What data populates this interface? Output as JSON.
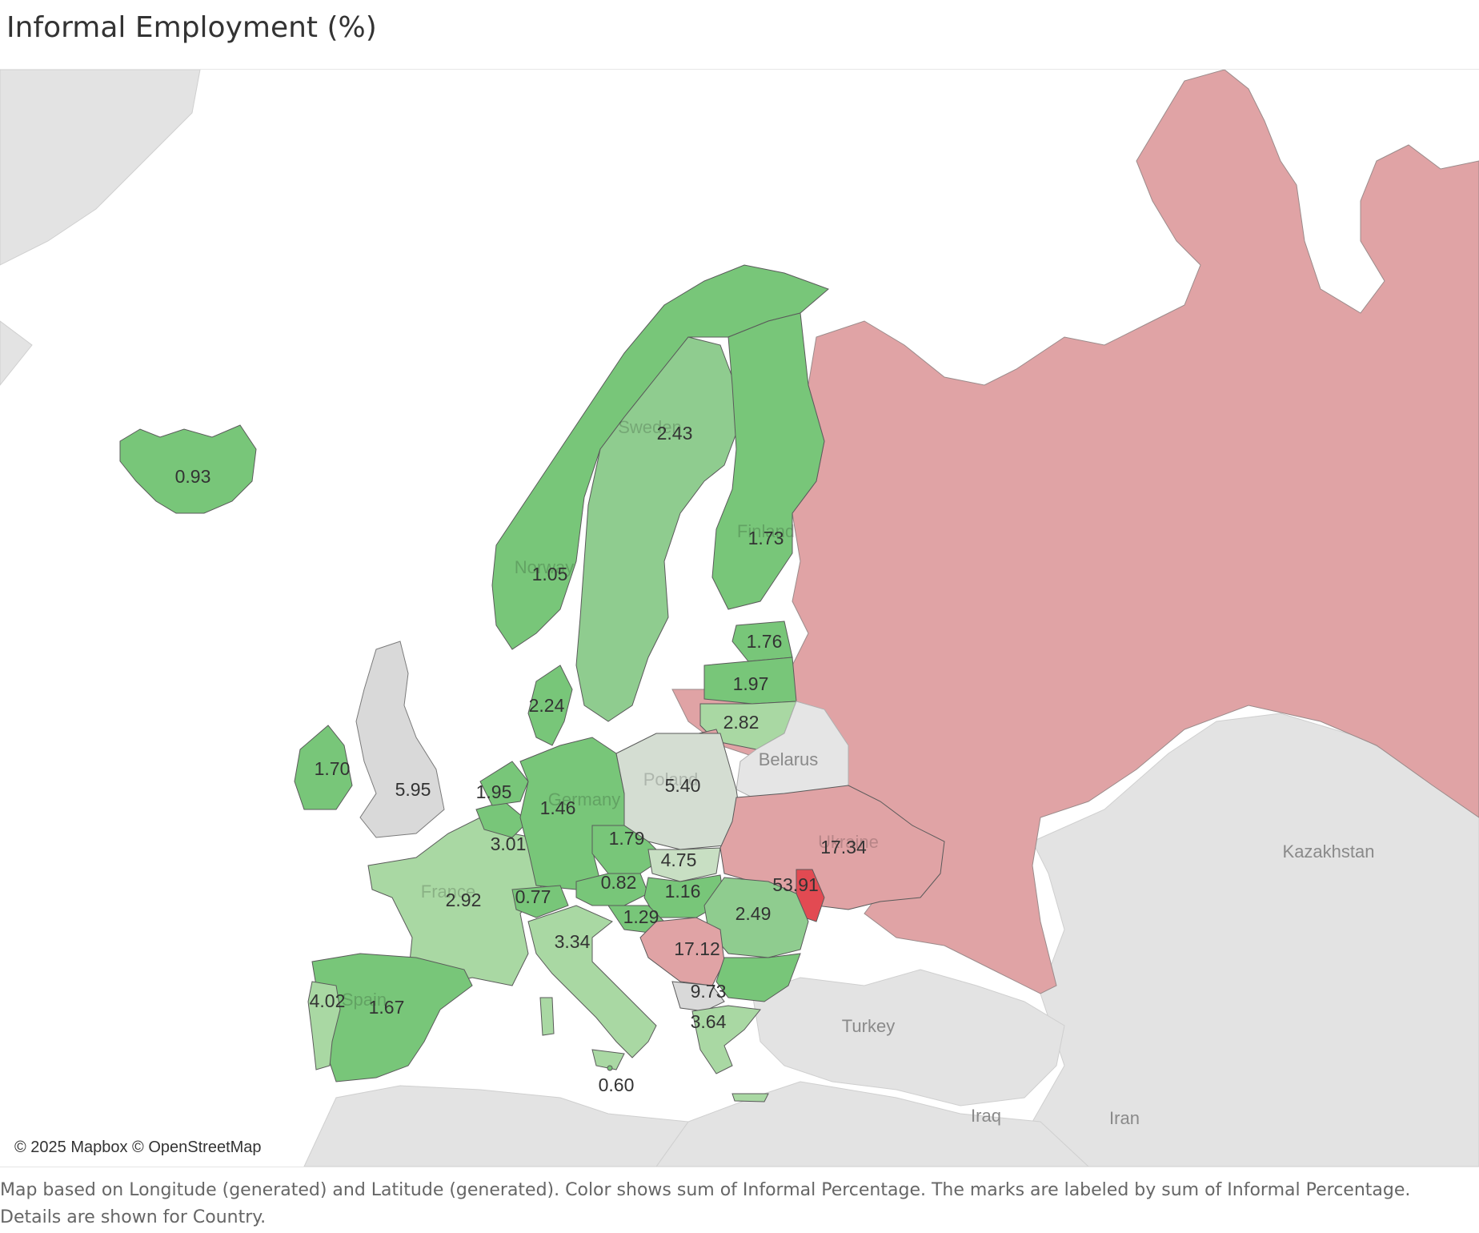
{
  "title": "Informal Employment (%)",
  "attribution": "© 2025 Mapbox © OpenStreetMap",
  "caption": "Map based on Longitude (generated) and Latitude (generated).  Color shows sum of Informal Percentage.  The marks are labeled by sum of Informal Percentage.  Details are shown for Country.",
  "legend_colors": {
    "low_dark_green": "#78c679",
    "mid_green": "#8fcc8f",
    "light_green": "#a9d8a3",
    "neutral_grey": "#d4d4d4",
    "high_pink": "#e0a3a5",
    "highest_red": "#e24a52",
    "background_land": "#e2e2e2",
    "water": "#ffffff"
  },
  "countries": [
    {
      "country": "Iceland",
      "value": "0.93"
    },
    {
      "country": "Norway",
      "value": "1.05",
      "map_label": "Norway"
    },
    {
      "country": "Sweden",
      "value": "2.43",
      "map_label": "Sweden"
    },
    {
      "country": "Finland",
      "value": "1.73",
      "map_label": "Finland"
    },
    {
      "country": "Estonia",
      "value": "1.76"
    },
    {
      "country": "Latvia",
      "value": "1.97"
    },
    {
      "country": "Lithuania",
      "value": "2.82"
    },
    {
      "country": "Denmark",
      "value": "2.24"
    },
    {
      "country": "Ireland",
      "value": "1.70"
    },
    {
      "country": "United Kingdom",
      "value": "5.95"
    },
    {
      "country": "Netherlands",
      "value": "1.95"
    },
    {
      "country": "Germany",
      "value": "1.46",
      "map_label": "Germany"
    },
    {
      "country": "Poland",
      "value": "5.40",
      "map_label": "Poland"
    },
    {
      "country": "Belgium",
      "value": "3.01"
    },
    {
      "country": "Czechia",
      "value": "1.79"
    },
    {
      "country": "Slovakia",
      "value": "4.75"
    },
    {
      "country": "Ukraine",
      "value": "17.34",
      "map_label": "Ukraine"
    },
    {
      "country": "Moldova",
      "value": "53.91"
    },
    {
      "country": "France",
      "value": "2.92",
      "map_label": "France"
    },
    {
      "country": "Switzerland",
      "value": "0.77"
    },
    {
      "country": "Austria",
      "value": "0.82"
    },
    {
      "country": "Hungary",
      "value": "1.16"
    },
    {
      "country": "Romania",
      "value": "2.49"
    },
    {
      "country": "Slovenia",
      "value": "1.29"
    },
    {
      "country": "Italy",
      "value": "3.34"
    },
    {
      "country": "Serbia",
      "value": "17.12"
    },
    {
      "country": "Albania / North Macedonia",
      "value": "9.73"
    },
    {
      "country": "Portugal",
      "value": "4.02"
    },
    {
      "country": "Spain",
      "value": "1.67",
      "map_label": "Spain"
    },
    {
      "country": "Greece",
      "value": "3.64"
    },
    {
      "country": "Malta",
      "value": "0.60"
    }
  ],
  "basemap_labels": {
    "belarus": "Belarus",
    "kazakhstan": "Kazakhstan",
    "turkey": "Turkey",
    "iraq": "Iraq",
    "iran": "Iran"
  }
}
